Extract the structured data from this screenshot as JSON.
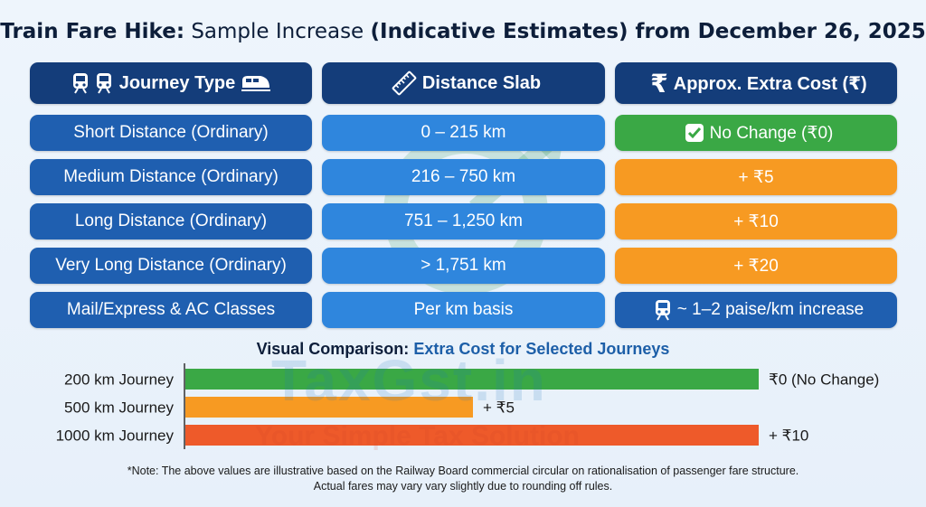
{
  "title": {
    "bold_prefix": "Train Fare Hike:",
    "light_part": "Sample Increase",
    "bold_suffix": "(Indicative Estimates) from December 26, 2025"
  },
  "table": {
    "headers": [
      "Journey Type",
      "Distance Slab",
      "Approx. Extra Cost (₹)"
    ],
    "rows": [
      {
        "journey": "Short Distance (Ordinary)",
        "distance": "0 – 215 km",
        "cost": "No Change (₹0)"
      },
      {
        "journey": "Medium Distance (Ordinary)",
        "distance": "216 – 750 km",
        "cost": "+ ₹5"
      },
      {
        "journey": "Long Distance (Ordinary)",
        "distance": "751 – 1,250 km",
        "cost": "+ ₹10"
      },
      {
        "journey": "Very Long Distance (Ordinary)",
        "distance": "> 1,751 km",
        "cost": "+ ₹20"
      },
      {
        "journey": "Mail/Express & AC Classes",
        "distance": "Per km basis",
        "cost": "~ 1–2 paise/km increase"
      }
    ]
  },
  "chart_data": {
    "type": "bar",
    "orientation": "horizontal",
    "title_prefix": "Visual Comparison:",
    "title_highlight": "Extra Cost for Selected Journeys",
    "categories": [
      "200 km Journey",
      "500 km Journey",
      "1000 km Journey"
    ],
    "values": [
      0,
      5,
      10
    ],
    "data_labels": [
      "₹0 (No Change)",
      "+ ₹5",
      "+ ₹10"
    ],
    "colors": [
      "#3aa845",
      "#f79a22",
      "#ee5a2a"
    ],
    "grid": false
  },
  "note": {
    "line1": "*Note: The above values are illustrative based on the Railway Board commercial circular on rationalisation of passenger fare structure.",
    "line2": "Actual fares may vary vary slightly due to rounding off rules."
  },
  "watermark": {
    "brand": "TaxGst.in",
    "tagline": "Your Simple Tax Solution"
  },
  "icons": [
    "train-icon",
    "ruler-icon",
    "rupee-icon",
    "check-icon"
  ],
  "colors": {
    "header_bg": "#143d7a",
    "journey_bg": "#1f5fb0",
    "distance_bg": "#2f86dd",
    "no_change_bg": "#3aa845",
    "increase_bg": "#f79a22"
  }
}
